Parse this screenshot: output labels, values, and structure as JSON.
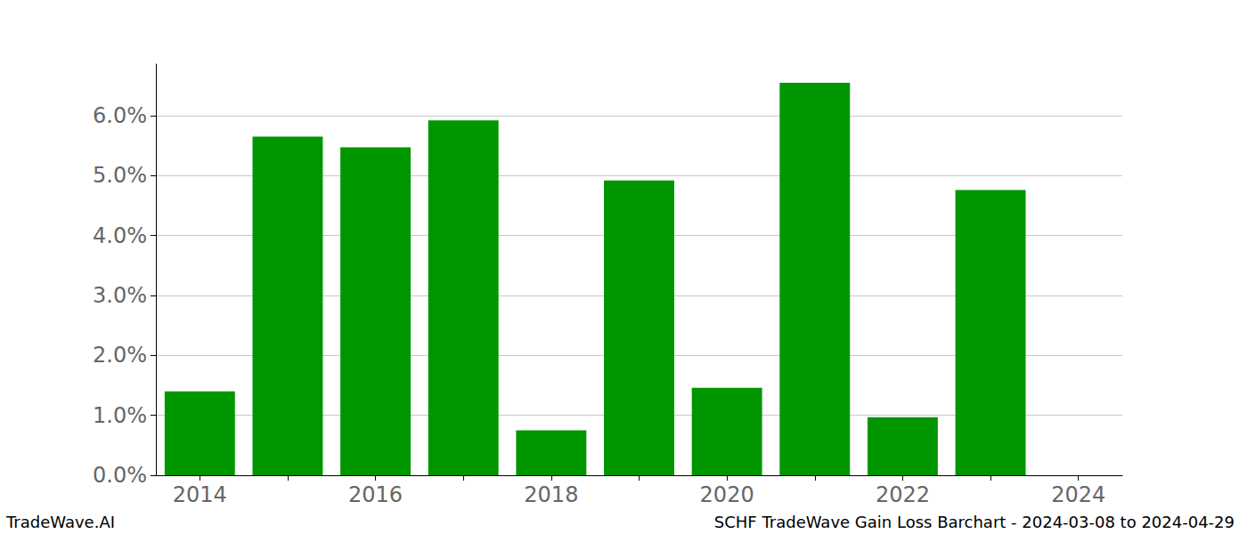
{
  "chart_data": {
    "type": "bar",
    "title": "SCHF TradeWave Gain Loss Barchart - 2024-03-08 to 2024-04-29",
    "annotations": [
      "TradeWave.AI"
    ],
    "categories": [
      "2014",
      null,
      "2016",
      null,
      "2018",
      null,
      "2020",
      null,
      "2022",
      null,
      "2024"
    ],
    "values": [
      1.4,
      5.65,
      5.47,
      5.92,
      0.75,
      4.92,
      1.46,
      6.55,
      0.97,
      4.76,
      null
    ],
    "color": "#009600",
    "ylim": [
      0,
      6.86
    ],
    "yticks": [
      {
        "value": 0,
        "label": "0.0%"
      },
      {
        "value": 1,
        "label": "1.0%"
      },
      {
        "value": 2,
        "label": "2.0%"
      },
      {
        "value": 3,
        "label": "3.0%"
      },
      {
        "value": 4,
        "label": "4.0%"
      },
      {
        "value": 5,
        "label": "5.0%"
      },
      {
        "value": 6,
        "label": "6.0%"
      }
    ],
    "grid": true
  }
}
